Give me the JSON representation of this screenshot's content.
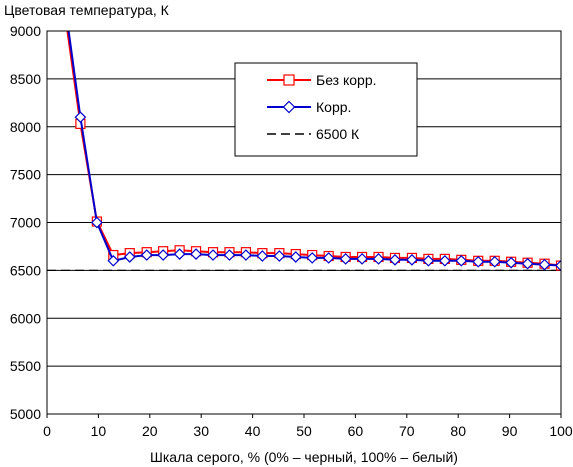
{
  "chart_data": {
    "type": "line",
    "ylabel": "Цветовая температура, К",
    "xlabel": "Шкала серого, % (0% – черный, 100% – белый)",
    "xlim": [
      0,
      100
    ],
    "ylim": [
      5000,
      9000
    ],
    "xticks": [
      "0",
      "10",
      "20",
      "30",
      "40",
      "50",
      "60",
      "70",
      "80",
      "90",
      "100"
    ],
    "yticks": [
      "5000",
      "5500",
      "6000",
      "6500",
      "7000",
      "7500",
      "8000",
      "8500",
      "9000"
    ],
    "grid": "horizontal",
    "legend_position": "top-right",
    "series": [
      {
        "name": "Без корр.",
        "color": "#ff0000",
        "marker": "square",
        "x": [
          3.2,
          6.5,
          9.7,
          12.9,
          16.1,
          19.4,
          22.6,
          25.8,
          29.0,
          32.3,
          35.5,
          38.7,
          41.9,
          45.2,
          48.4,
          51.6,
          54.8,
          58.1,
          61.3,
          64.5,
          67.7,
          71.0,
          74.2,
          77.4,
          80.6,
          83.9,
          87.1,
          90.3,
          93.5,
          96.8,
          100
        ],
        "values": [
          9300,
          8030,
          7010,
          6660,
          6680,
          6690,
          6700,
          6710,
          6700,
          6690,
          6690,
          6690,
          6680,
          6680,
          6670,
          6660,
          6650,
          6640,
          6640,
          6640,
          6630,
          6630,
          6620,
          6620,
          6610,
          6600,
          6600,
          6590,
          6580,
          6570,
          6550
        ]
      },
      {
        "name": "Корр.",
        "color": "#0000cc",
        "marker": "diamond",
        "x": [
          3.2,
          6.5,
          9.7,
          12.9,
          16.1,
          19.4,
          22.6,
          25.8,
          29.0,
          32.3,
          35.5,
          38.7,
          41.9,
          45.2,
          48.4,
          51.6,
          54.8,
          58.1,
          61.3,
          64.5,
          67.7,
          71.0,
          74.2,
          77.4,
          80.6,
          83.9,
          87.1,
          90.3,
          93.5,
          96.8,
          100
        ],
        "values": [
          9400,
          8100,
          7000,
          6600,
          6640,
          6660,
          6660,
          6670,
          6670,
          6660,
          6660,
          6660,
          6650,
          6650,
          6640,
          6630,
          6630,
          6620,
          6620,
          6620,
          6610,
          6610,
          6600,
          6600,
          6600,
          6590,
          6590,
          6580,
          6570,
          6560,
          6550
        ]
      },
      {
        "name": "6500 К",
        "color": "#000000",
        "marker": "none",
        "dashed": true,
        "x": [
          0,
          100
        ],
        "values": [
          6500,
          6500
        ]
      }
    ]
  }
}
